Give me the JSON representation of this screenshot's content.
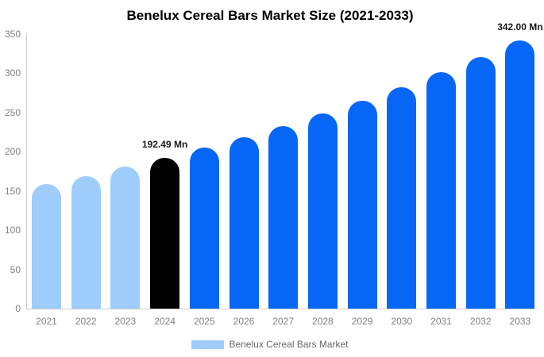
{
  "title": "Benelux Cereal Bars Market Size (2021-2033)",
  "legend": {
    "label": "Benelux Cereal Bars Market",
    "swatch_color": "#9ECDFB"
  },
  "colors": {
    "historical_bar": "#9ECDFB",
    "base_year_bar": "#000000",
    "forecast_bar": "#0667F6",
    "axis_line": "#cccccc",
    "tick_text": "#808080",
    "legend_text": "#666666",
    "annotation_text": "#1a1a1a",
    "title_text": "#000000"
  },
  "chart_data": {
    "type": "bar",
    "title": "Benelux Cereal Bars Market Size (2021-2033)",
    "categories": [
      "2021",
      "2022",
      "2023",
      "2024",
      "2025",
      "2026",
      "2027",
      "2028",
      "2029",
      "2030",
      "2031",
      "2032",
      "2033"
    ],
    "values": [
      158.9,
      169.4,
      180.6,
      192.49,
      205.2,
      218.7,
      233.1,
      248.5,
      264.9,
      282.3,
      301.0,
      320.8,
      342.0
    ],
    "unit": "Mn",
    "xlabel": "",
    "ylabel": "",
    "ylim": [
      0,
      350
    ],
    "yticks": [
      0,
      50,
      100,
      150,
      200,
      250,
      300,
      350
    ],
    "grid": false,
    "legend_position": "bottom",
    "bar_colors": [
      "#9ECDFB",
      "#9ECDFB",
      "#9ECDFB",
      "#000000",
      "#0667F6",
      "#0667F6",
      "#0667F6",
      "#0667F6",
      "#0667F6",
      "#0667F6",
      "#0667F6",
      "#0667F6",
      "#0667F6"
    ],
    "annotations": [
      {
        "category": "2024",
        "label": "192.49 Mn"
      },
      {
        "category": "2033",
        "label": "342.00 Mn"
      }
    ]
  }
}
